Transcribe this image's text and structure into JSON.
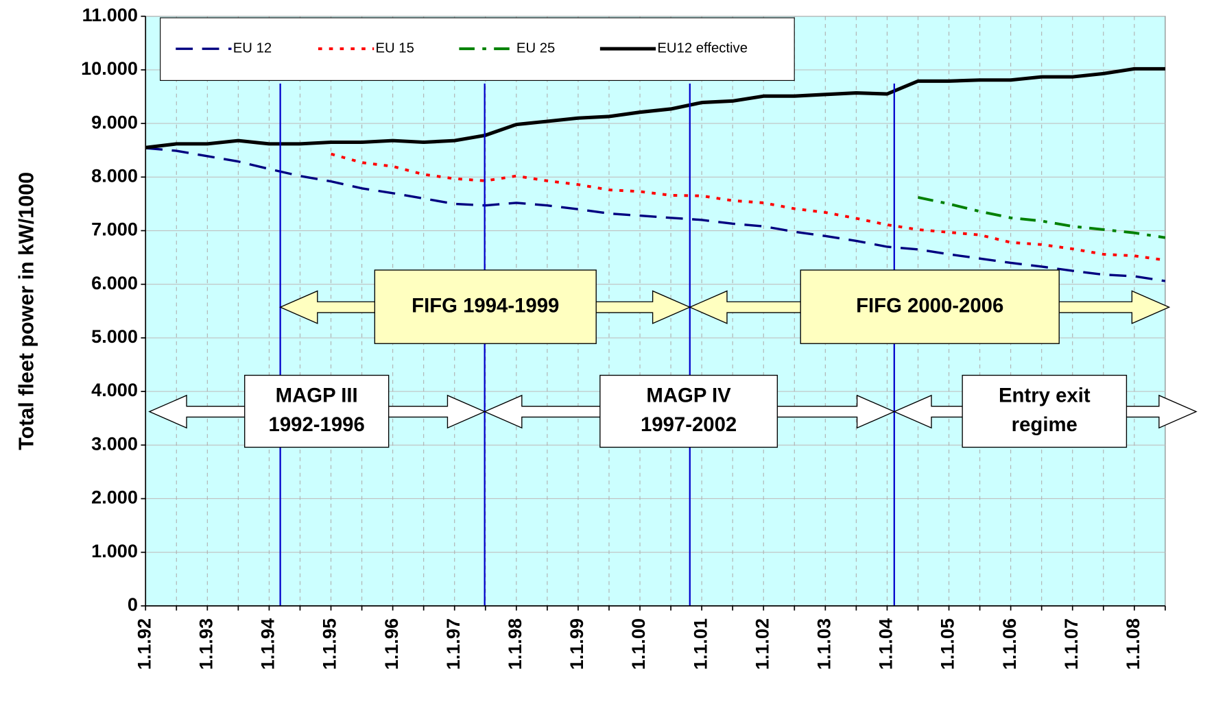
{
  "chart_data": {
    "type": "line",
    "y_label": "Total fleet power in kW/1000",
    "categories": [
      "1.1.92",
      null,
      "1.1.93",
      null,
      "1.1.94",
      null,
      "1.1.95",
      null,
      "1.1.96",
      null,
      "1.1.97",
      null,
      "1.1.98",
      null,
      "1.1.99",
      null,
      "1.1.00",
      null,
      "1.1.01",
      null,
      "1.1.02",
      null,
      "1.1.03",
      null,
      "1.1.04",
      null,
      "1.1.05",
      null,
      "1.1.06",
      null,
      "1.1.07",
      null,
      "1.1.08",
      null
    ],
    "series": [
      {
        "name": "EU 12",
        "color": "#000080",
        "dash": "dashed",
        "values": [
          8540,
          8490,
          8390,
          8290,
          8150,
          8020,
          7920,
          7790,
          7700,
          7600,
          7500,
          7470,
          7520,
          7470,
          7400,
          7320,
          7280,
          7240,
          7200,
          7130,
          7080,
          6980,
          6900,
          6810,
          6700,
          6650,
          6560,
          6480,
          6400,
          6330,
          6250,
          6180,
          6150,
          6060
        ]
      },
      {
        "name": "EU 15",
        "color": "#ff0000",
        "dash": "dotted",
        "values": [
          null,
          null,
          null,
          null,
          null,
          null,
          8430,
          8270,
          8200,
          8050,
          7970,
          7930,
          8020,
          7930,
          7860,
          7760,
          7730,
          7660,
          7650,
          7560,
          7520,
          7410,
          7340,
          7230,
          7110,
          7020,
          6970,
          6920,
          6780,
          6740,
          6660,
          6560,
          6530,
          6450
        ]
      },
      {
        "name": "EU 25",
        "color": "#008000",
        "dash": "dashdot",
        "values": [
          null,
          null,
          null,
          null,
          null,
          null,
          null,
          null,
          null,
          null,
          null,
          null,
          null,
          null,
          null,
          null,
          null,
          null,
          null,
          null,
          null,
          null,
          null,
          null,
          null,
          7620,
          7500,
          7360,
          7240,
          7180,
          7080,
          7020,
          6960,
          6870
        ]
      },
      {
        "name": "EU12 effective",
        "color": "#000000",
        "dash": "solid",
        "values": [
          8550,
          8620,
          8620,
          8680,
          8620,
          8620,
          8650,
          8650,
          8680,
          8650,
          8680,
          8780,
          8980,
          9040,
          9100,
          9130,
          9210,
          9270,
          9390,
          9420,
          9510,
          9510,
          9540,
          9570,
          9550,
          9790,
          9790,
          9810,
          9810,
          9870,
          9870,
          9930,
          10020,
          10020
        ]
      }
    ],
    "ylim": [
      0,
      11000
    ],
    "yticks": [
      0,
      {
        "value": 1000,
        "label": "1.000"
      },
      {
        "value": 2000,
        "label": "2.000"
      },
      {
        "value": 3000,
        "label": "3.000"
      },
      {
        "value": 4000,
        "label": "4.000"
      },
      {
        "value": 5000,
        "label": "5.000"
      },
      {
        "value": 6000,
        "label": "6.000"
      },
      {
        "value": 7000,
        "label": "7.000"
      },
      {
        "value": 8000,
        "label": "8.000"
      },
      {
        "value": 9000,
        "label": "9.000"
      },
      {
        "value": 10000,
        "label": "10.000"
      },
      {
        "value": 11000,
        "label": "11.000"
      }
    ],
    "grid": true,
    "legend": "top-left",
    "annotations": [
      {
        "lines": [
          "FIFG 1994-1999"
        ]
      },
      {
        "lines": [
          "FIFG 2000-2006"
        ]
      },
      {
        "lines": [
          "MAGP III",
          "1992-1996"
        ]
      },
      {
        "lines": [
          "MAGP IV",
          "1997-2002"
        ]
      },
      {
        "lines": [
          "Entry exit",
          "regime"
        ]
      }
    ]
  }
}
